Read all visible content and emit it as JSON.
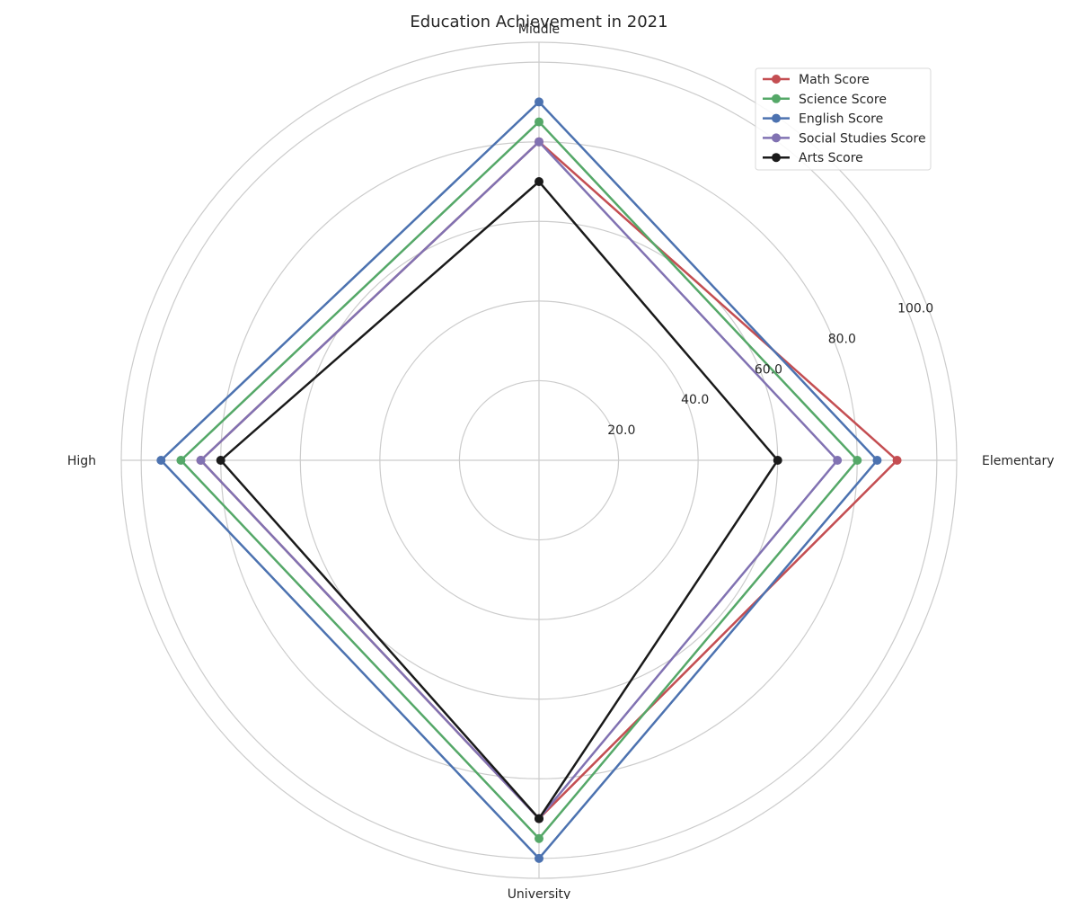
{
  "chart_data": {
    "type": "radar",
    "title": "Education Achievement in 2021",
    "categories": [
      "Elementary",
      "Middle",
      "High",
      "University"
    ],
    "rlim": [
      0,
      105
    ],
    "rticks": [
      20,
      40,
      60,
      80,
      100
    ],
    "rtick_labels": [
      "20.0",
      "40.0",
      "60.0",
      "80.0",
      "100.0"
    ],
    "grid": true,
    "legend_position": "top-right",
    "series": [
      {
        "name": "Math Score",
        "color": "#c44e52",
        "values": [
          90,
          80,
          85,
          90
        ]
      },
      {
        "name": "Science Score",
        "color": "#55a868",
        "values": [
          80,
          85,
          90,
          95
        ]
      },
      {
        "name": "English Score",
        "color": "#4c72b0",
        "values": [
          85,
          90,
          95,
          100
        ]
      },
      {
        "name": "Social Studies Score",
        "color": "#8172b2",
        "values": [
          75,
          80,
          85,
          90
        ]
      },
      {
        "name": "Arts Score",
        "color": "#1a1a1a",
        "values": [
          60,
          70,
          80,
          90
        ]
      }
    ]
  }
}
